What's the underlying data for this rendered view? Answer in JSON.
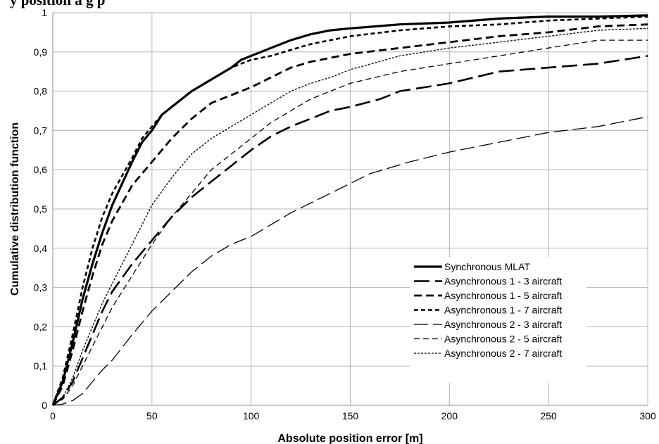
{
  "cut_title": "y position a g p",
  "chart_data": {
    "type": "line",
    "xlabel": "Absolute position error [m]",
    "ylabel": "Cumulative distribution function",
    "xlim": [
      0,
      300
    ],
    "ylim": [
      0,
      1
    ],
    "x_ticks": [
      "0",
      "50",
      "100",
      "150",
      "200",
      "250",
      "300"
    ],
    "y_ticks": [
      "0",
      "0,1",
      "0,2",
      "0,3",
      "0,4",
      "0,5",
      "0,6",
      "0,7",
      "0,8",
      "0,9",
      "1"
    ],
    "grid": true,
    "legend_position": "bottom-right",
    "series": [
      {
        "name": "Synchronous MLAT",
        "style": "solid",
        "width": 3.2,
        "x": [
          0,
          5,
          10,
          15,
          20,
          25,
          30,
          40,
          45,
          50,
          55,
          60,
          70,
          80,
          90,
          95,
          100,
          110,
          120,
          130,
          140,
          150,
          175,
          200,
          225,
          250,
          275,
          300
        ],
        "y": [
          0,
          0.06,
          0.16,
          0.27,
          0.36,
          0.44,
          0.51,
          0.62,
          0.67,
          0.7,
          0.74,
          0.76,
          0.8,
          0.83,
          0.86,
          0.88,
          0.89,
          0.91,
          0.93,
          0.945,
          0.955,
          0.96,
          0.97,
          0.975,
          0.985,
          0.99,
          0.99,
          0.993
        ]
      },
      {
        "name": "Asynchronous 1 - 3 aircraft",
        "style": "longdash",
        "width": 2.6,
        "x": [
          0,
          5,
          10,
          15,
          20,
          25,
          30,
          40,
          50,
          60,
          70,
          80,
          90,
          100,
          110,
          120,
          130,
          140,
          150,
          165,
          175,
          200,
          225,
          250,
          275,
          300
        ],
        "y": [
          0,
          0.02,
          0.06,
          0.12,
          0.18,
          0.24,
          0.29,
          0.36,
          0.42,
          0.48,
          0.53,
          0.57,
          0.61,
          0.65,
          0.685,
          0.71,
          0.73,
          0.75,
          0.76,
          0.78,
          0.8,
          0.82,
          0.85,
          0.86,
          0.87,
          0.89
        ]
      },
      {
        "name": "Asynchronous 1 - 5 aircraft",
        "style": "dash",
        "width": 2.8,
        "x": [
          0,
          5,
          10,
          15,
          20,
          25,
          30,
          40,
          50,
          60,
          70,
          80,
          90,
          100,
          110,
          120,
          130,
          150,
          175,
          200,
          225,
          250,
          275,
          300
        ],
        "y": [
          0,
          0.05,
          0.14,
          0.24,
          0.33,
          0.41,
          0.47,
          0.56,
          0.62,
          0.68,
          0.73,
          0.77,
          0.79,
          0.81,
          0.835,
          0.86,
          0.875,
          0.895,
          0.91,
          0.925,
          0.94,
          0.95,
          0.965,
          0.97
        ]
      },
      {
        "name": "Asynchronous 1 - 7 aircraft",
        "style": "shortdash",
        "width": 2.6,
        "x": [
          0,
          5,
          10,
          15,
          20,
          25,
          30,
          40,
          45,
          50,
          55,
          60,
          70,
          80,
          90,
          100,
          110,
          120,
          130,
          140,
          150,
          175,
          200,
          225,
          250,
          275,
          300
        ],
        "y": [
          0,
          0.07,
          0.18,
          0.3,
          0.4,
          0.48,
          0.54,
          0.63,
          0.68,
          0.71,
          0.74,
          0.76,
          0.8,
          0.83,
          0.86,
          0.88,
          0.89,
          0.905,
          0.92,
          0.93,
          0.94,
          0.955,
          0.965,
          0.97,
          0.98,
          0.985,
          0.99
        ]
      },
      {
        "name": "Asynchronous 2 - 3 aircraft",
        "style": "longdash",
        "width": 1.3,
        "x": [
          0,
          5,
          10,
          15,
          20,
          25,
          30,
          40,
          50,
          60,
          70,
          80,
          90,
          100,
          110,
          120,
          140,
          160,
          180,
          200,
          225,
          250,
          275,
          300
        ],
        "y": [
          0,
          0.003,
          0.012,
          0.03,
          0.06,
          0.09,
          0.115,
          0.18,
          0.24,
          0.29,
          0.34,
          0.38,
          0.41,
          0.43,
          0.46,
          0.49,
          0.54,
          0.59,
          0.62,
          0.645,
          0.67,
          0.695,
          0.71,
          0.735
        ]
      },
      {
        "name": "Asynchronous 2 - 5 aircraft",
        "style": "dash",
        "width": 1.3,
        "x": [
          0,
          5,
          10,
          15,
          20,
          25,
          30,
          40,
          50,
          60,
          70,
          80,
          90,
          100,
          110,
          120,
          130,
          140,
          150,
          175,
          200,
          225,
          250,
          275,
          300
        ],
        "y": [
          0,
          0.015,
          0.05,
          0.1,
          0.15,
          0.2,
          0.25,
          0.33,
          0.41,
          0.48,
          0.54,
          0.6,
          0.64,
          0.68,
          0.72,
          0.75,
          0.78,
          0.8,
          0.82,
          0.85,
          0.87,
          0.89,
          0.91,
          0.93,
          0.93
        ]
      },
      {
        "name": "Asynchronous 2 - 7 aircraft",
        "style": "dot",
        "width": 1.3,
        "x": [
          0,
          5,
          10,
          15,
          20,
          25,
          30,
          40,
          50,
          60,
          70,
          80,
          90,
          100,
          110,
          120,
          130,
          140,
          150,
          175,
          200,
          225,
          250,
          275,
          300
        ],
        "y": [
          0,
          0.02,
          0.07,
          0.14,
          0.2,
          0.26,
          0.31,
          0.41,
          0.51,
          0.58,
          0.64,
          0.68,
          0.71,
          0.74,
          0.77,
          0.8,
          0.82,
          0.835,
          0.855,
          0.89,
          0.91,
          0.925,
          0.94,
          0.955,
          0.96
        ]
      }
    ]
  }
}
